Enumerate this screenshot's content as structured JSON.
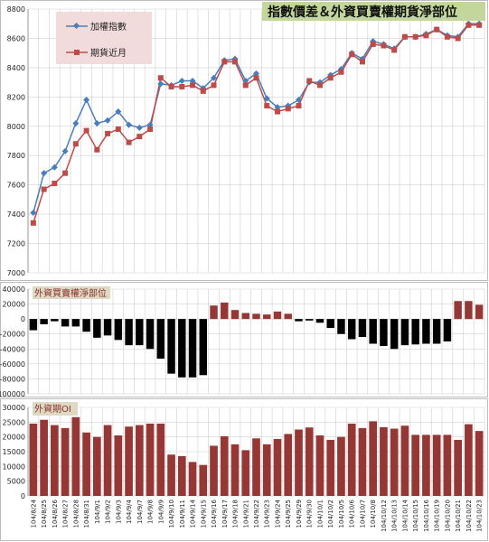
{
  "title": "指數價差＆外資買賣權期貨淨部位",
  "colors": {
    "index_line": "#4a7ebb",
    "futures_line": "#be4b48",
    "net_position_positive": "#953735",
    "net_position_negative": "#000000",
    "oi_bar": "#953735",
    "title_bg": "#c4d79b",
    "legend_bg": "#f2dcdb",
    "subtitle_bg": "#ddd9c3",
    "grid": "#d0d0d0"
  },
  "chart_data": [
    {
      "type": "line",
      "title": "",
      "legend": {
        "placement": "top-left",
        "entries": [
          "加權指數",
          "期貨近月"
        ]
      },
      "categories": [
        "104/8/24",
        "104/8/25",
        "104/8/26",
        "104/8/27",
        "104/8/28",
        "104/8/31",
        "104/9/1",
        "104/9/2",
        "104/9/3",
        "104/9/4",
        "104/9/7",
        "104/9/8",
        "104/9/9",
        "104/9/10",
        "104/9/11",
        "104/9/14",
        "104/9/15",
        "104/9/16",
        "104/9/17",
        "104/9/18",
        "104/9/21",
        "104/9/22",
        "104/9/23",
        "104/9/24",
        "104/9/25",
        "104/9/29",
        "104/9/30",
        "104/10/1",
        "104/10/2",
        "104/10/5",
        "104/10/6",
        "104/10/7",
        "104/10/8",
        "104/10/12",
        "104/10/13",
        "104/10/14",
        "104/10/15",
        "104/10/16",
        "104/10/19",
        "104/10/20",
        "104/10/21",
        "104/10/22",
        "104/10/23"
      ],
      "ylim": [
        7000,
        8800
      ],
      "yticks": [
        7000,
        7200,
        7400,
        7600,
        7800,
        8000,
        8200,
        8400,
        8600,
        8800
      ],
      "grid": true,
      "series": [
        {
          "name": "加權指數",
          "values": [
            7410,
            7680,
            7720,
            7830,
            8020,
            8180,
            8020,
            8040,
            8100,
            8010,
            7990,
            8010,
            8290,
            8280,
            8310,
            8310,
            8260,
            8330,
            8450,
            8460,
            8310,
            8360,
            8190,
            8130,
            8140,
            8180,
            8300,
            8300,
            8350,
            8390,
            8500,
            8460,
            8580,
            8560,
            8530,
            8610,
            8610,
            8630,
            8660,
            8620,
            8610,
            8700,
            8700
          ]
        },
        {
          "name": "期貨近月",
          "values": [
            7340,
            7570,
            7610,
            7680,
            7880,
            7970,
            7840,
            7950,
            7980,
            7890,
            7930,
            7980,
            8330,
            8270,
            8270,
            8280,
            8240,
            8280,
            8440,
            8440,
            8280,
            8330,
            8140,
            8100,
            8120,
            8140,
            8310,
            8280,
            8330,
            8370,
            8490,
            8440,
            8560,
            8550,
            8520,
            8610,
            8610,
            8620,
            8660,
            8610,
            8600,
            8690,
            8690
          ]
        }
      ]
    },
    {
      "type": "bar",
      "title": "外資買賣權淨部位",
      "categories": [
        "104/8/24",
        "104/8/25",
        "104/8/26",
        "104/8/27",
        "104/8/28",
        "104/8/31",
        "104/9/1",
        "104/9/2",
        "104/9/3",
        "104/9/4",
        "104/9/7",
        "104/9/8",
        "104/9/9",
        "104/9/10",
        "104/9/11",
        "104/9/14",
        "104/9/15",
        "104/9/16",
        "104/9/17",
        "104/9/18",
        "104/9/21",
        "104/9/22",
        "104/9/23",
        "104/9/24",
        "104/9/25",
        "104/9/29",
        "104/9/30",
        "104/10/1",
        "104/10/2",
        "104/10/5",
        "104/10/6",
        "104/10/7",
        "104/10/8",
        "104/10/12",
        "104/10/13",
        "104/10/14",
        "104/10/15",
        "104/10/16",
        "104/10/19",
        "104/10/20",
        "104/10/21",
        "104/10/22",
        "104/10/23"
      ],
      "ylim": [
        -100000,
        40000
      ],
      "yticks": [
        -100000,
        -80000,
        -60000,
        -40000,
        -20000,
        0,
        20000,
        40000
      ],
      "grid": true,
      "values": [
        -15000,
        -7000,
        -3000,
        -10000,
        -10000,
        -17000,
        -25000,
        -22000,
        -28000,
        -35000,
        -35000,
        -40000,
        -53000,
        -73000,
        -78000,
        -78000,
        -75000,
        18000,
        22000,
        12000,
        8000,
        7000,
        6000,
        10000,
        7000,
        -3000,
        -2000,
        -5000,
        -12000,
        -20000,
        -27000,
        -24000,
        -33000,
        -36000,
        -40000,
        -35000,
        -34000,
        -33000,
        -33000,
        -30000,
        24000,
        24000,
        19000
      ]
    },
    {
      "type": "bar",
      "title": "外資期OI",
      "categories": [
        "104/8/24",
        "104/8/25",
        "104/8/26",
        "104/8/27",
        "104/8/28",
        "104/8/31",
        "104/9/1",
        "104/9/2",
        "104/9/3",
        "104/9/4",
        "104/9/7",
        "104/9/8",
        "104/9/9",
        "104/9/10",
        "104/9/11",
        "104/9/14",
        "104/9/15",
        "104/9/16",
        "104/9/17",
        "104/9/18",
        "104/9/21",
        "104/9/22",
        "104/9/23",
        "104/9/24",
        "104/9/25",
        "104/9/29",
        "104/9/30",
        "104/10/1",
        "104/10/2",
        "104/10/5",
        "104/10/6",
        "104/10/7",
        "104/10/8",
        "104/10/12",
        "104/10/13",
        "104/10/14",
        "104/10/15",
        "104/10/16",
        "104/10/19",
        "104/10/20",
        "104/10/21",
        "104/10/22",
        "104/10/23"
      ],
      "ylim": [
        0,
        30000
      ],
      "yticks": [
        0,
        5000,
        10000,
        15000,
        20000,
        25000,
        30000
      ],
      "grid": true,
      "values": [
        24500,
        25800,
        24000,
        23000,
        26700,
        21500,
        20000,
        24000,
        20500,
        23500,
        24000,
        24500,
        24500,
        14000,
        13500,
        11500,
        10500,
        17000,
        20200,
        17500,
        15500,
        19500,
        17500,
        19300,
        21000,
        22500,
        23200,
        20500,
        19000,
        20000,
        24500,
        23000,
        25300,
        23300,
        22800,
        23800,
        20700,
        20700,
        20700,
        20700,
        19000,
        24300,
        22000
      ]
    }
  ]
}
